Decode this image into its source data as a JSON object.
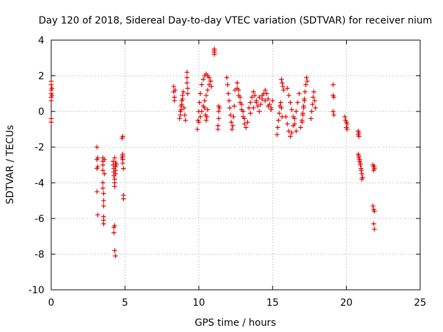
{
  "chart_data": {
    "type": "scatter",
    "title": "Day 120 of 2018, Sidereal Day-to-day VTEC variation (SDTVAR) for receiver nium",
    "xlabel": "GPS time / hours",
    "ylabel": "SDTVAR / TECUs",
    "xlim": [
      0,
      25
    ],
    "ylim": [
      -10,
      4
    ],
    "xticks": [
      0,
      5,
      10,
      15,
      20,
      25
    ],
    "yticks": [
      -10,
      -8,
      -6,
      -4,
      -2,
      0,
      2,
      4
    ],
    "xtick_labels": [
      "0",
      "5",
      "10",
      "15",
      "20",
      "25"
    ],
    "ytick_labels": [
      "-10",
      "-8",
      "-6",
      "-4",
      "-2",
      "0",
      "2",
      "4"
    ],
    "grid": true,
    "marker": "+",
    "color": "#e00000",
    "series": [
      {
        "name": "SDTVAR",
        "x": [
          0.0,
          0.0,
          0.0,
          0.0,
          0.0,
          0.0,
          0.0,
          0.0,
          0.05,
          0.05,
          3.1,
          3.1,
          3.1,
          3.1,
          3.15,
          3.15,
          3.15,
          3.5,
          3.5,
          3.5,
          3.5,
          3.5,
          3.5,
          3.55,
          3.55,
          3.55,
          3.55,
          3.55,
          3.55,
          3.6,
          3.6,
          4.2,
          4.2,
          4.25,
          4.25,
          4.25,
          4.3,
          4.3,
          4.3,
          4.3,
          4.35,
          4.35,
          4.35,
          4.35,
          4.4,
          4.4,
          4.25,
          4.25,
          4.3,
          4.3,
          4.35,
          4.8,
          4.8,
          4.85,
          4.85,
          4.85,
          4.9,
          4.9,
          4.9,
          4.85,
          4.85,
          8.3,
          8.3,
          8.35,
          8.35,
          8.4,
          8.7,
          8.75,
          8.8,
          8.85,
          8.9,
          8.95,
          9.0,
          9.05,
          9.1,
          8.75,
          8.8,
          8.85,
          8.9,
          9.2,
          9.2,
          9.2,
          9.25,
          9.25,
          9.9,
          9.95,
          10.0,
          10.05,
          10.1,
          10.2,
          10.3,
          10.4,
          10.5,
          10.6,
          10.7,
          10.8,
          10.85,
          10.0,
          10.1,
          10.2,
          10.3,
          10.4,
          10.5,
          10.6,
          10.7,
          10.8,
          10.4,
          10.45,
          10.5,
          10.55,
          10.6,
          11.05,
          11.05,
          11.05,
          11.05,
          11.3,
          11.3,
          11.35,
          11.35,
          11.35,
          11.4,
          11.9,
          11.95,
          12.0,
          12.05,
          12.1,
          12.15,
          12.2,
          12.25,
          12.3,
          12.35,
          12.4,
          12.45,
          12.6,
          12.7,
          12.8,
          12.9,
          13.0,
          13.1,
          13.2,
          13.3,
          12.6,
          12.7,
          12.8,
          12.9,
          13.0,
          13.1,
          13.4,
          13.5,
          13.6,
          13.7,
          13.8,
          13.9,
          14.0,
          14.1,
          14.2,
          14.3,
          14.4,
          14.5,
          14.6,
          14.7,
          14.8,
          14.9,
          15.0,
          13.5,
          13.7,
          13.9,
          14.1,
          14.3,
          14.5,
          14.7,
          14.9,
          15.3,
          15.35,
          15.4,
          15.45,
          15.5,
          15.55,
          15.6,
          15.65,
          15.6,
          15.65,
          15.7,
          15.75,
          15.9,
          16.0,
          16.1,
          16.2,
          16.3,
          16.4,
          16.5,
          16.6,
          16.7,
          16.8,
          16.0,
          16.1,
          16.2,
          16.3,
          16.4,
          16.5,
          16.6,
          16.9,
          17.0,
          17.05,
          17.1,
          17.15,
          17.2,
          17.25,
          17.3,
          17.35,
          17.0,
          17.05,
          17.1,
          17.15,
          17.6,
          17.65,
          17.7,
          17.75,
          17.8,
          17.85,
          17.9,
          19.1,
          19.1,
          19.1,
          19.15,
          19.15,
          19.9,
          19.95,
          20.0,
          20.0,
          20.05,
          20.05,
          20.8,
          20.8,
          20.85,
          20.85,
          20.8,
          20.85,
          20.9,
          20.95,
          21.0,
          21.05,
          21.1,
          20.85,
          20.9,
          20.95,
          21.0,
          21.05,
          21.8,
          21.85,
          21.9,
          21.85,
          21.9,
          21.8,
          21.85,
          21.9,
          21.85,
          21.9
        ],
        "y": [
          1.7,
          1.5,
          1.2,
          1.0,
          0.8,
          0.6,
          -0.4,
          -0.6,
          1.3,
          0.9,
          -2.0,
          -2.7,
          -3.2,
          -4.5,
          -5.8,
          -2.6,
          -3.1,
          -2.6,
          -2.8,
          -3.0,
          -3.3,
          -4.0,
          -4.3,
          -4.6,
          -5.0,
          -5.3,
          -5.9,
          -6.1,
          -6.3,
          -2.7,
          -3.5,
          -2.8,
          -3.0,
          -3.2,
          -3.4,
          -3.6,
          -3.8,
          -4.0,
          -4.2,
          -2.6,
          -2.9,
          -3.1,
          -3.3,
          -3.5,
          -2.9,
          -3.0,
          -6.5,
          -6.8,
          -6.4,
          -7.8,
          -8.1,
          -1.5,
          -2.6,
          -2.5,
          -2.7,
          -2.9,
          -3.2,
          -4.7,
          -4.9,
          -2.4,
          -1.4,
          1.4,
          1.1,
          0.8,
          0.6,
          1.2,
          -0.4,
          0.0,
          0.3,
          0.6,
          0.9,
          1.1,
          0.2,
          -0.2,
          -0.5,
          -0.2,
          0.1,
          0.4,
          0.7,
          2.2,
          1.9,
          1.6,
          1.3,
          1.0,
          -1.0,
          -0.5,
          0.0,
          0.5,
          1.0,
          1.5,
          1.8,
          2.0,
          2.1,
          2.0,
          1.9,
          1.7,
          1.4,
          -0.6,
          -0.3,
          0.0,
          0.3,
          0.6,
          0.9,
          1.2,
          1.5,
          1.7,
          0.2,
          -0.2,
          -0.5,
          -0.3,
          0.1,
          3.5,
          3.3,
          3.2,
          3.4,
          -0.8,
          -1.0,
          0.3,
          0.0,
          -0.4,
          0.2,
          1.9,
          1.5,
          1.0,
          0.6,
          0.2,
          -0.2,
          -0.6,
          -1.0,
          -0.8,
          -0.3,
          0.3,
          1.2,
          1.3,
          0.9,
          0.5,
          0.1,
          -0.3,
          -0.7,
          -0.9,
          -0.6,
          1.6,
          1.2,
          0.8,
          0.4,
          0.0,
          -0.4,
          0.2,
          0.5,
          0.8,
          1.1,
          0.9,
          0.6,
          0.3,
          0.0,
          0.4,
          0.7,
          1.0,
          1.2,
          1.0,
          0.7,
          0.4,
          0.1,
          0.6,
          -0.1,
          0.2,
          0.5,
          0.8,
          0.9,
          0.6,
          0.3,
          0.2,
          -1.3,
          -0.9,
          -0.5,
          -0.1,
          0.3,
          0.5,
          0.2,
          -0.3,
          1.8,
          1.6,
          1.4,
          1.2,
          -0.3,
          -0.7,
          -1.1,
          -1.4,
          -1.2,
          -0.8,
          -0.4,
          0.0,
          0.5,
          1.0,
          1.3,
          0.9,
          0.5,
          0.1,
          -0.3,
          -0.7,
          -1.1,
          -0.9,
          -0.5,
          -0.1,
          0.3,
          0.7,
          1.1,
          1.5,
          1.9,
          1.7,
          -0.6,
          -0.2,
          0.2,
          0.6,
          -0.4,
          0.0,
          0.4,
          0.8,
          1.1,
          0.6,
          0.2,
          1.5,
          0.9,
          0.0,
          0.8,
          -0.2,
          -0.3,
          -0.5,
          -0.6,
          -0.9,
          -0.7,
          -1.0,
          -1.1,
          -1.3,
          -1.4,
          -1.2,
          -2.4,
          -2.6,
          -2.8,
          -3.0,
          -3.2,
          -3.5,
          -3.7,
          -2.5,
          -2.7,
          -2.9,
          -3.3,
          -3.8,
          -3.0,
          -3.1,
          -3.2,
          -3.3,
          -3.1,
          -5.3,
          -5.5,
          -5.6,
          -6.3,
          -6.6
        ]
      }
    ]
  }
}
